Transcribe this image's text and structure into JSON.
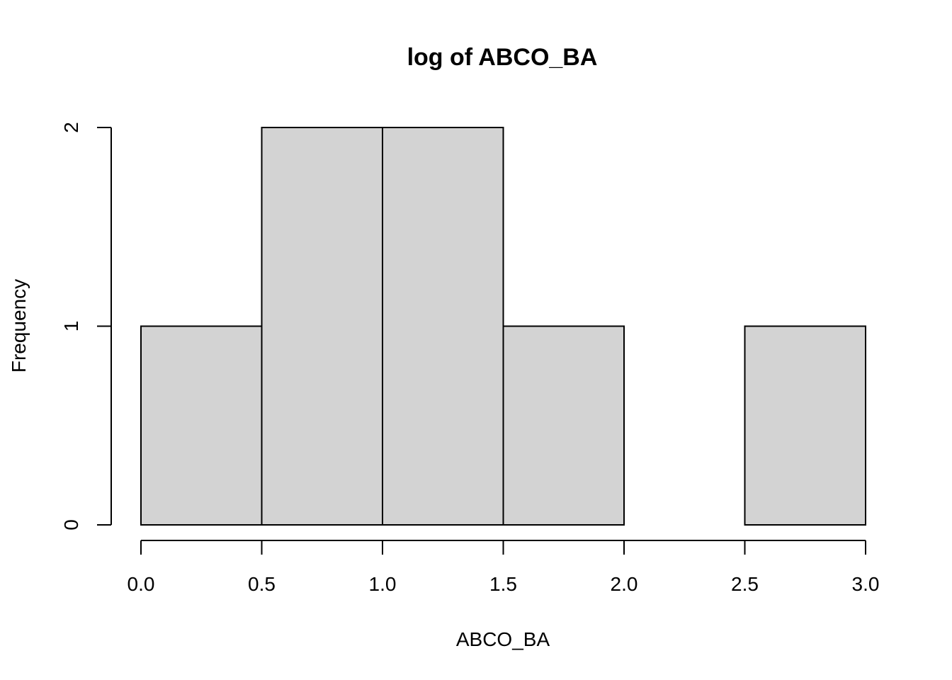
{
  "chart_data": {
    "type": "bar",
    "subtype": "histogram",
    "title": "log of ABCO_BA",
    "xlabel": "ABCO_BA",
    "ylabel": "Frequency",
    "bins": [
      {
        "start": 0.0,
        "end": 0.5,
        "count": 1
      },
      {
        "start": 0.5,
        "end": 1.0,
        "count": 2
      },
      {
        "start": 1.0,
        "end": 1.5,
        "count": 2
      },
      {
        "start": 1.5,
        "end": 2.0,
        "count": 1
      },
      {
        "start": 2.0,
        "end": 2.5,
        "count": 0
      },
      {
        "start": 2.5,
        "end": 3.0,
        "count": 1
      }
    ],
    "xlim": [
      0.0,
      3.0
    ],
    "ylim": [
      0,
      2
    ],
    "x_ticks": [
      "0.0",
      "0.5",
      "1.0",
      "1.5",
      "2.0",
      "2.5",
      "3.0"
    ],
    "y_ticks": [
      "0",
      "1",
      "2"
    ],
    "bar_color": "#d3d3d3",
    "edge_color": "#000000",
    "grid": false
  }
}
